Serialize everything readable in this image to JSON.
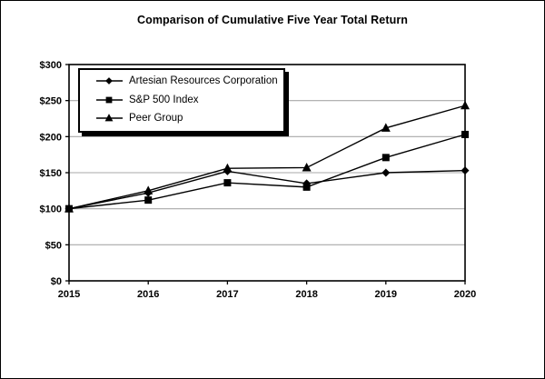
{
  "window": {
    "background": "#ffffff",
    "border_color": "#000000"
  },
  "title": "Comparison of Cumulative Five Year Total Return",
  "chart_data": {
    "type": "line",
    "title": "Comparison of Cumulative Five Year Total Return",
    "x": [
      "2015",
      "2016",
      "2017",
      "2018",
      "2019",
      "2020"
    ],
    "series": [
      {
        "name": "Artesian Resources Corporation",
        "marker": "diamond",
        "color": "#000000",
        "values": [
          100,
          122,
          152,
          135,
          150,
          153
        ]
      },
      {
        "name": "S&P 500 Index",
        "marker": "square",
        "color": "#000000",
        "values": [
          100,
          112,
          136,
          130,
          171,
          203
        ]
      },
      {
        "name": "Peer Group",
        "marker": "triangle",
        "color": "#000000",
        "values": [
          100,
          125,
          156,
          157,
          212,
          243
        ]
      }
    ],
    "xlabel": "",
    "ylabel": "",
    "ylim": [
      0,
      300
    ],
    "ytick_step": 50,
    "ytick_labels": [
      "$0",
      "$50",
      "$100",
      "$150",
      "$200",
      "$250",
      "$300"
    ],
    "xtick_labels": [
      "2015",
      "2016",
      "2017",
      "2018",
      "2019",
      "2020"
    ],
    "grid": "horizontal",
    "grid_color": "#a8a8a8",
    "axis_color": "#000000",
    "legend_position": "top-left-inside"
  }
}
